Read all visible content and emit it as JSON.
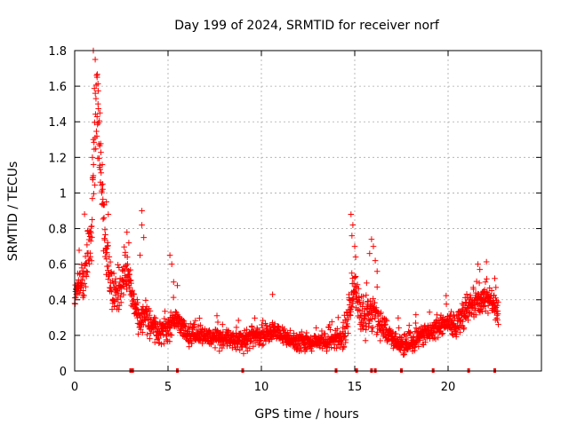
{
  "chart_data": {
    "type": "scatter",
    "title": "Day 199 of 2024, SRMTID for receiver norf",
    "xlabel": "GPS time / hours",
    "ylabel": "SRMTID / TECUs",
    "xlim": [
      0,
      25
    ],
    "ylim": [
      0,
      1.8
    ],
    "xticks": [
      0,
      5,
      10,
      15,
      20
    ],
    "yticks": [
      0,
      0.2,
      0.4,
      0.6,
      0.8,
      1,
      1.2,
      1.4,
      1.6,
      1.8
    ],
    "xtick_labels": [
      "0",
      "5",
      "10",
      "15",
      "20"
    ],
    "ytick_labels": [
      "0",
      "0.2",
      "0.4",
      "0.6",
      "0.8",
      "1",
      "1.2",
      "1.4",
      "1.6",
      "1.8"
    ],
    "grid": true,
    "marker": "+",
    "series": [
      {
        "name": "SRMTID",
        "color": "#ff0000",
        "trend": [
          [
            0.0,
            0.45
          ],
          [
            0.3,
            0.48
          ],
          [
            0.6,
            0.55
          ],
          [
            0.9,
            0.8
          ],
          [
            1.1,
            1.35
          ],
          [
            1.2,
            1.55
          ],
          [
            1.4,
            1.1
          ],
          [
            1.6,
            0.75
          ],
          [
            1.8,
            0.55
          ],
          [
            2.0,
            0.45
          ],
          [
            2.3,
            0.4
          ],
          [
            2.6,
            0.55
          ],
          [
            2.9,
            0.55
          ],
          [
            3.2,
            0.35
          ],
          [
            3.5,
            0.3
          ],
          [
            3.8,
            0.32
          ],
          [
            4.1,
            0.25
          ],
          [
            4.5,
            0.22
          ],
          [
            5.0,
            0.24
          ],
          [
            5.5,
            0.3
          ],
          [
            6.0,
            0.2
          ],
          [
            7.0,
            0.2
          ],
          [
            8.0,
            0.18
          ],
          [
            9.0,
            0.17
          ],
          [
            10.0,
            0.2
          ],
          [
            10.5,
            0.22
          ],
          [
            11.0,
            0.2
          ],
          [
            12.0,
            0.16
          ],
          [
            13.0,
            0.16
          ],
          [
            14.0,
            0.17
          ],
          [
            14.5,
            0.22
          ],
          [
            14.8,
            0.4
          ],
          [
            15.0,
            0.5
          ],
          [
            15.3,
            0.3
          ],
          [
            15.6,
            0.3
          ],
          [
            16.0,
            0.35
          ],
          [
            16.4,
            0.25
          ],
          [
            17.0,
            0.18
          ],
          [
            17.5,
            0.14
          ],
          [
            18.0,
            0.16
          ],
          [
            18.5,
            0.2
          ],
          [
            19.0,
            0.22
          ],
          [
            19.5,
            0.25
          ],
          [
            20.0,
            0.28
          ],
          [
            20.5,
            0.25
          ],
          [
            21.0,
            0.35
          ],
          [
            21.5,
            0.38
          ],
          [
            22.0,
            0.42
          ],
          [
            22.4,
            0.38
          ],
          [
            22.7,
            0.3
          ]
        ],
        "spread": [
          [
            0.0,
            0.1
          ],
          [
            1.0,
            0.25
          ],
          [
            1.3,
            0.3
          ],
          [
            2.0,
            0.15
          ],
          [
            3.0,
            0.12
          ],
          [
            4.0,
            0.1
          ],
          [
            5.0,
            0.1
          ],
          [
            6.0,
            0.07
          ],
          [
            10.0,
            0.07
          ],
          [
            14.0,
            0.06
          ],
          [
            15.0,
            0.18
          ],
          [
            16.0,
            0.15
          ],
          [
            17.0,
            0.07
          ],
          [
            20.0,
            0.08
          ],
          [
            22.0,
            0.12
          ],
          [
            22.7,
            0.08
          ]
        ],
        "spikes": [
          [
            1.0,
            1.8
          ],
          [
            1.1,
            1.75
          ],
          [
            1.2,
            1.65
          ],
          [
            1.25,
            1.5
          ],
          [
            1.35,
            1.45
          ],
          [
            1.0,
            1.3
          ],
          [
            0.95,
            1.2
          ],
          [
            1.5,
            1.05
          ],
          [
            1.7,
            0.95
          ],
          [
            1.8,
            0.88
          ],
          [
            2.8,
            0.78
          ],
          [
            2.9,
            0.72
          ],
          [
            3.6,
            0.9
          ],
          [
            3.6,
            0.82
          ],
          [
            3.7,
            0.75
          ],
          [
            3.5,
            0.65
          ],
          [
            5.1,
            0.65
          ],
          [
            5.2,
            0.6
          ],
          [
            5.3,
            0.5
          ],
          [
            5.5,
            0.48
          ],
          [
            14.8,
            0.88
          ],
          [
            14.9,
            0.82
          ],
          [
            14.85,
            0.76
          ],
          [
            15.0,
            0.7
          ],
          [
            15.05,
            0.64
          ],
          [
            15.9,
            0.74
          ],
          [
            16.0,
            0.7
          ],
          [
            15.8,
            0.66
          ],
          [
            16.1,
            0.62
          ],
          [
            16.2,
            0.56
          ],
          [
            21.6,
            0.6
          ],
          [
            21.7,
            0.57
          ],
          [
            22.5,
            0.52
          ],
          [
            22.0,
            0.5
          ],
          [
            10.6,
            0.43
          ]
        ],
        "gap_markers": [
          3.0,
          3.1,
          5.5,
          9.0,
          14.0,
          15.1,
          15.9,
          16.1,
          17.5,
          19.2,
          21.1,
          22.5
        ]
      }
    ]
  }
}
